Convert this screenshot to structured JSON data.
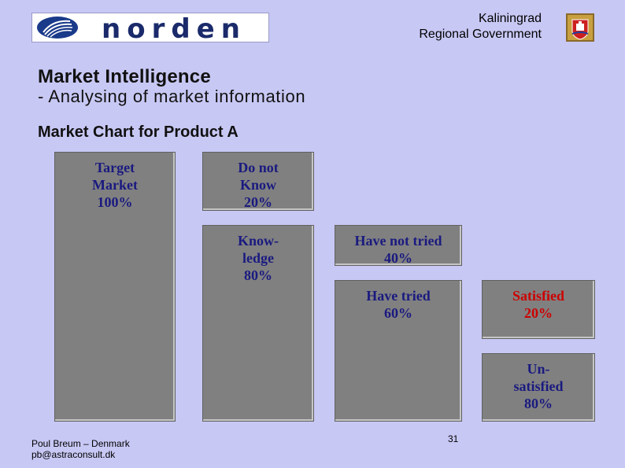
{
  "header": {
    "brand": "norden",
    "government_line1": "Kaliningrad",
    "government_line2": "Regional Government",
    "logo_icon": "norden-swan-globe-icon",
    "crest_icon": "kaliningrad-crest-icon"
  },
  "slide": {
    "title": "Market Intelligence",
    "subtitle": "- Analysing of market information",
    "chart_title": "Market Chart for Product A"
  },
  "diagram": {
    "boxes": [
      {
        "id": "target-market",
        "label": "Target\nMarket\n100%",
        "value_percent": 100
      },
      {
        "id": "do-not-know",
        "label": "Do not\nKnow\n20%",
        "value_percent": 20
      },
      {
        "id": "knowledge",
        "label": "Know-\nledge\n80%",
        "value_percent": 80
      },
      {
        "id": "have-not-tried",
        "label": "Have not tried\n40%",
        "value_percent": 40
      },
      {
        "id": "have-tried",
        "label": "Have tried\n60%",
        "value_percent": 60
      },
      {
        "id": "satisfied",
        "label": "Satisfied\n20%",
        "value_percent": 20
      },
      {
        "id": "unsatisfied",
        "label": "Un-\nsatisfied\n80%",
        "value_percent": 80
      }
    ],
    "colors": {
      "box_fill": "#808080",
      "label_text": "#1a1a80",
      "highlight_text": "#cc0000",
      "background": "#c8c8f5"
    }
  },
  "footer": {
    "author": "Poul Breum – Denmark",
    "email": "pb@astraconsult.dk",
    "page_number": "31"
  }
}
